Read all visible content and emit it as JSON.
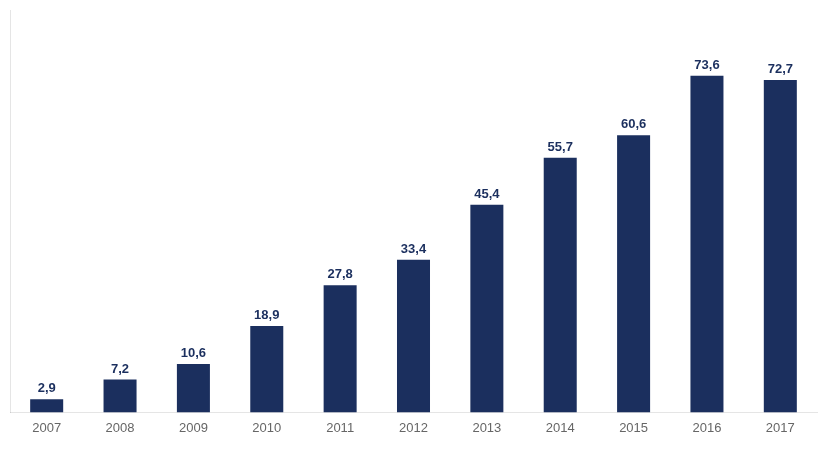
{
  "chart_data": {
    "type": "bar",
    "categories": [
      "2007",
      "2008",
      "2009",
      "2010",
      "2011",
      "2012",
      "2013",
      "2014",
      "2015",
      "2016",
      "2017"
    ],
    "values": [
      2.9,
      7.2,
      10.6,
      18.9,
      27.8,
      33.4,
      45.4,
      55.7,
      60.6,
      73.6,
      72.7
    ],
    "value_labels": [
      "2,9",
      "7,2",
      "10,6",
      "18,9",
      "27,8",
      "33,4",
      "45,4",
      "55,7",
      "60,6",
      "73,6",
      "72,7"
    ],
    "data_labels": true,
    "color": "#1b2f5e",
    "ylim": [
      0,
      88
    ],
    "tick_labels": "x",
    "grid": false
  }
}
